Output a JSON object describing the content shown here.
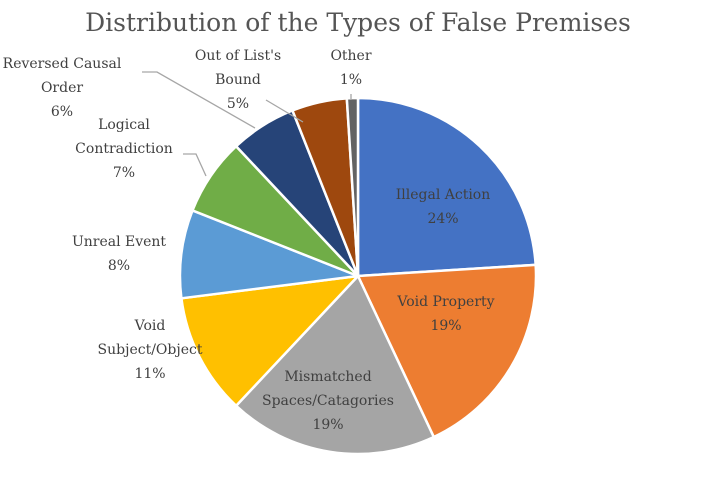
{
  "chart_data": {
    "type": "pie",
    "title": "Distribution of the Types of False Premises",
    "slices": [
      {
        "name": "Illegal Action",
        "value": 24,
        "label": "24%",
        "color": "#4472C4"
      },
      {
        "name": "Void Property",
        "value": 19,
        "label": "19%",
        "color": "#ED7D31"
      },
      {
        "name": "Mismatched Spaces/Catagories",
        "value": 19,
        "label": "19%",
        "color": "#A5A5A5"
      },
      {
        "name": "Void Subject/Object",
        "value": 11,
        "label": "11%",
        "color": "#FFC000"
      },
      {
        "name": "Unreal Event",
        "value": 8,
        "label": "8%",
        "color": "#5B9BD5"
      },
      {
        "name": "Logical Contradiction",
        "value": 7,
        "label": "7%",
        "color": "#70AD47"
      },
      {
        "name": "Reversed Causal Order",
        "value": 6,
        "label": "6%",
        "color": "#264478"
      },
      {
        "name": "Out of List's Bound",
        "value": 5,
        "label": "5%",
        "color": "#9E480E"
      },
      {
        "name": "Other",
        "value": 1,
        "label": "1%",
        "color": "#636363"
      }
    ]
  }
}
